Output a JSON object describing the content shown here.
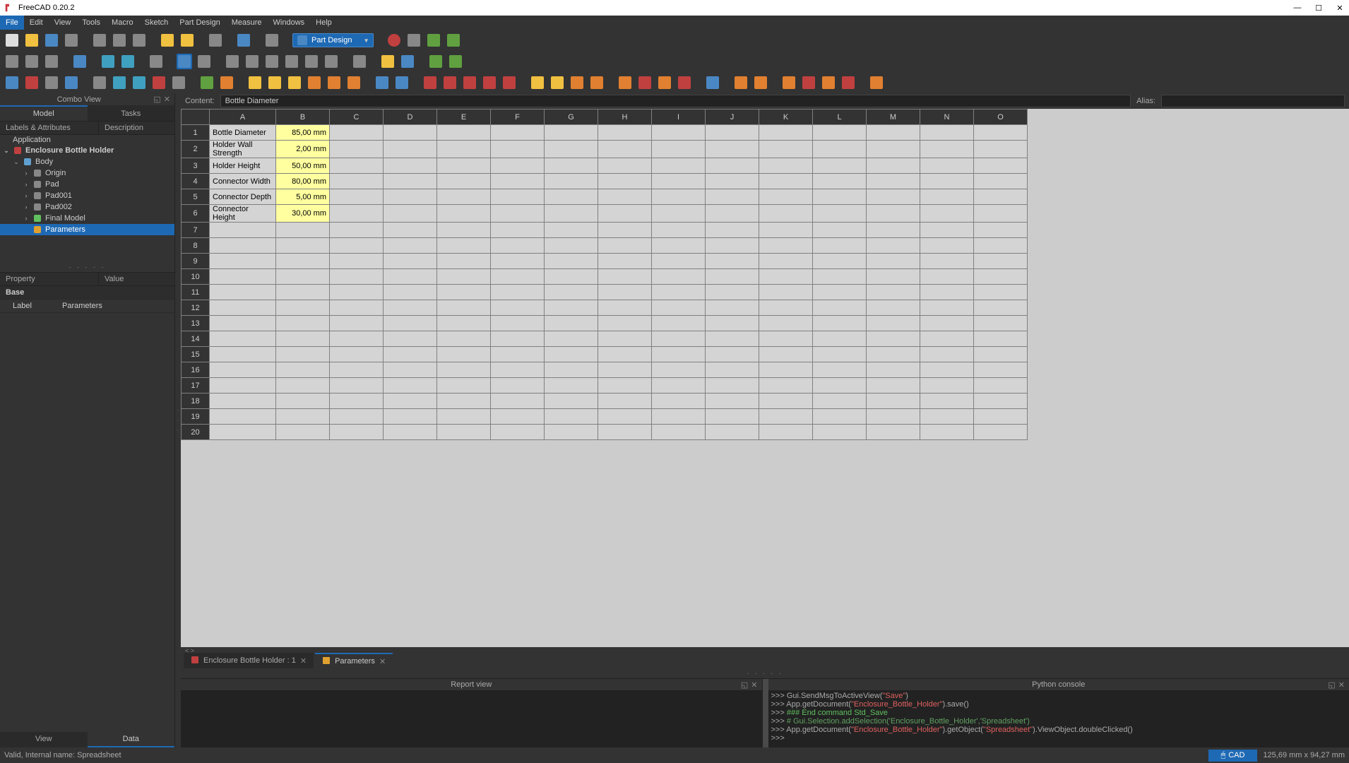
{
  "app": {
    "title": "FreeCAD 0.20.2"
  },
  "menus": [
    "File",
    "Edit",
    "View",
    "Tools",
    "Macro",
    "Sketch",
    "Part Design",
    "Measure",
    "Windows",
    "Help"
  ],
  "menu_active_index": 0,
  "workbench": {
    "label": "Part Design"
  },
  "combo": {
    "title": "Combo View",
    "tabs": [
      "Model",
      "Tasks"
    ],
    "active_tab": 0,
    "sub_headers": [
      "Labels & Attributes",
      "Description"
    ],
    "tree": {
      "root": "Application",
      "doc": "Enclosure Bottle Holder",
      "body": "Body",
      "items": [
        {
          "label": "Origin",
          "icon": "origin"
        },
        {
          "label": "Pad",
          "icon": "pad"
        },
        {
          "label": "Pad001",
          "icon": "pad"
        },
        {
          "label": "Pad002",
          "icon": "pad"
        },
        {
          "label": "Final Model",
          "icon": "model",
          "green": true
        }
      ],
      "selected": "Parameters"
    },
    "prop_headers": [
      "Property",
      "Value"
    ],
    "prop_section": "Base",
    "prop_rows": [
      {
        "k": "Label",
        "v": "Parameters"
      }
    ],
    "bottom_tabs": [
      "View",
      "Data"
    ],
    "bottom_active": 1
  },
  "content_bar": {
    "content_label": "Content:",
    "content_value": "Bottle Diameter",
    "alias_label": "Alias:"
  },
  "spreadsheet": {
    "columns": [
      "A",
      "B",
      "C",
      "D",
      "E",
      "F",
      "G",
      "H",
      "I",
      "J",
      "K",
      "L",
      "M",
      "N",
      "O"
    ],
    "row_count": 20,
    "data_rows": [
      {
        "a": "Bottle Diameter",
        "b": "85,00 mm"
      },
      {
        "a": "Holder Wall Strength",
        "b": "2,00 mm"
      },
      {
        "a": "Holder Height",
        "b": "50,00 mm"
      },
      {
        "a": "Connector Width",
        "b": "80,00 mm"
      },
      {
        "a": "Connector Depth",
        "b": "5,00 mm"
      },
      {
        "a": "Connector Height",
        "b": "30,00 mm"
      }
    ],
    "highlight_col": "B"
  },
  "doc_tabs": [
    {
      "label": "Enclosure Bottle Holder : 1",
      "active": false,
      "icon": "doc"
    },
    {
      "label": "Parameters",
      "active": true,
      "icon": "sheet"
    }
  ],
  "bottom": {
    "report_title": "Report view",
    "console_title": "Python console",
    "console_lines": [
      {
        "parts": [
          {
            "t": ">>> ",
            "c": "c-gray"
          },
          {
            "t": "Gui.SendMsgToActiveView(",
            "c": "c-gray"
          },
          {
            "t": "\"Save\"",
            "c": "c-red"
          },
          {
            "t": ")",
            "c": "c-gray"
          }
        ]
      },
      {
        "parts": [
          {
            "t": ">>> ",
            "c": "c-gray"
          },
          {
            "t": "App.getDocument(",
            "c": "c-gray"
          },
          {
            "t": "\"Enclosure_Bottle_Holder\"",
            "c": "c-red"
          },
          {
            "t": ").save()",
            "c": "c-gray"
          }
        ]
      },
      {
        "parts": [
          {
            "t": ">>> ",
            "c": "c-gray"
          },
          {
            "t": "### End command Std_Save",
            "c": "c-green"
          }
        ]
      },
      {
        "parts": [
          {
            "t": ">>> ",
            "c": "c-gray"
          },
          {
            "t": "# Gui.Selection.addSelection('Enclosure_Bottle_Holder','Spreadsheet')",
            "c": "c-comment"
          }
        ]
      },
      {
        "parts": [
          {
            "t": ">>> ",
            "c": "c-gray"
          },
          {
            "t": "App.getDocument(",
            "c": "c-gray"
          },
          {
            "t": "\"Enclosure_Bottle_Holder\"",
            "c": "c-red"
          },
          {
            "t": ").getObject(",
            "c": "c-gray"
          },
          {
            "t": "\"Spreadsheet\"",
            "c": "c-red"
          },
          {
            "t": ").ViewObject.doubleClicked()",
            "c": "c-gray"
          }
        ]
      },
      {
        "parts": [
          {
            "t": ">>> ",
            "c": "c-gray"
          }
        ]
      }
    ]
  },
  "status": {
    "left": "Valid, Internal name: Spreadsheet",
    "cad": "CAD",
    "dims": "125,69 mm x 94,27 mm"
  },
  "toolbar_rows": [
    [
      {
        "c": "ic-white"
      },
      {
        "c": "ic-yellow"
      },
      {
        "c": "ic-blue"
      },
      {
        "c": "ic-gray"
      },
      {
        "sep": true
      },
      {
        "c": "ic-gray"
      },
      {
        "c": "ic-gray"
      },
      {
        "c": "ic-gray"
      },
      {
        "sep": true
      },
      {
        "c": "ic-yellow"
      },
      {
        "c": "ic-yellow"
      },
      {
        "sep": true
      },
      {
        "c": "ic-gray"
      },
      {
        "sep": true
      },
      {
        "c": "ic-blue"
      },
      {
        "sep": true
      },
      {
        "c": "ic-gray"
      },
      {
        "sep": true
      },
      {
        "wb": true
      },
      {
        "sep": true
      },
      {
        "c": "ic-red ic-circle"
      },
      {
        "c": "ic-gray"
      },
      {
        "c": "ic-green"
      },
      {
        "c": "ic-green"
      }
    ],
    [
      {
        "c": "ic-gray"
      },
      {
        "c": "ic-gray"
      },
      {
        "c": "ic-gray"
      },
      {
        "sep": true
      },
      {
        "c": "ic-blue"
      },
      {
        "sep": true
      },
      {
        "c": "ic-cyan"
      },
      {
        "c": "ic-cyan"
      },
      {
        "sep": true
      },
      {
        "c": "ic-gray"
      },
      {
        "sep": true
      },
      {
        "c": "ic-blue",
        "active": true
      },
      {
        "c": "ic-gray"
      },
      {
        "sep": true
      },
      {
        "c": "ic-gray"
      },
      {
        "c": "ic-gray"
      },
      {
        "c": "ic-gray"
      },
      {
        "c": "ic-gray"
      },
      {
        "c": "ic-gray"
      },
      {
        "c": "ic-gray"
      },
      {
        "sep": true
      },
      {
        "c": "ic-gray"
      },
      {
        "sep": true
      },
      {
        "c": "ic-yellow"
      },
      {
        "c": "ic-blue"
      },
      {
        "sep": true
      },
      {
        "c": "ic-green"
      },
      {
        "c": "ic-green"
      }
    ],
    [
      {
        "c": "ic-blue"
      },
      {
        "c": "ic-red"
      },
      {
        "c": "ic-gray"
      },
      {
        "c": "ic-blue"
      },
      {
        "sep": true
      },
      {
        "c": "ic-gray"
      },
      {
        "c": "ic-cyan"
      },
      {
        "c": "ic-cyan"
      },
      {
        "c": "ic-red"
      },
      {
        "c": "ic-gray"
      },
      {
        "sep": true
      },
      {
        "c": "ic-green"
      },
      {
        "c": "ic-orange"
      },
      {
        "sep": true
      },
      {
        "c": "ic-yellow"
      },
      {
        "c": "ic-yellow"
      },
      {
        "c": "ic-yellow"
      },
      {
        "c": "ic-orange"
      },
      {
        "c": "ic-orange"
      },
      {
        "c": "ic-orange"
      },
      {
        "sep": true
      },
      {
        "c": "ic-blue"
      },
      {
        "c": "ic-blue"
      },
      {
        "sep": true
      },
      {
        "c": "ic-red"
      },
      {
        "c": "ic-red"
      },
      {
        "c": "ic-red"
      },
      {
        "c": "ic-red"
      },
      {
        "c": "ic-red"
      },
      {
        "sep": true
      },
      {
        "c": "ic-yellow"
      },
      {
        "c": "ic-yellow"
      },
      {
        "c": "ic-orange"
      },
      {
        "c": "ic-orange"
      },
      {
        "sep": true
      },
      {
        "c": "ic-orange"
      },
      {
        "c": "ic-red"
      },
      {
        "c": "ic-orange"
      },
      {
        "c": "ic-red"
      },
      {
        "sep": true
      },
      {
        "c": "ic-blue"
      },
      {
        "sep": true
      },
      {
        "c": "ic-orange"
      },
      {
        "c": "ic-orange"
      },
      {
        "sep": true
      },
      {
        "c": "ic-orange"
      },
      {
        "c": "ic-red"
      },
      {
        "c": "ic-orange"
      },
      {
        "c": "ic-red"
      },
      {
        "sep": true
      },
      {
        "c": "ic-orange"
      }
    ]
  ]
}
